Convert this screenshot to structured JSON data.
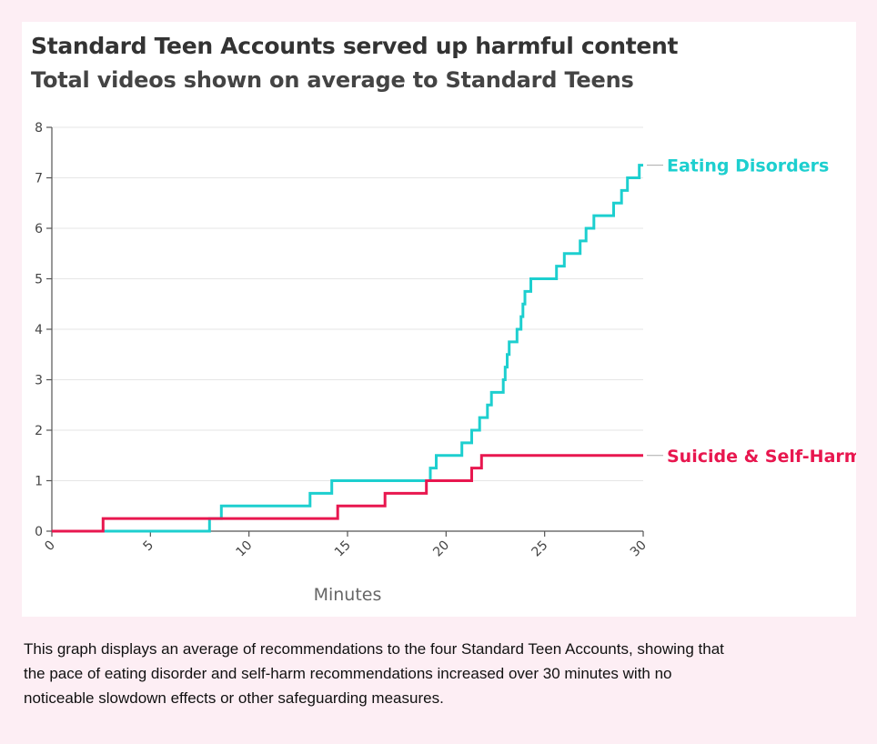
{
  "caption": "This graph displays an average of recommendations to the four Standard Teen Accounts, showing that the pace of eating disorder and self-harm recommendations increased over 30 minutes with no noticeable slowdown effects or other safeguarding measures.",
  "chart_data": {
    "type": "line",
    "step": true,
    "title": "Standard Teen Accounts served up harmful content",
    "subtitle": "Total videos shown on average to Standard Teens",
    "xlabel": "Minutes",
    "ylabel": "",
    "xlim": [
      0,
      30
    ],
    "ylim": [
      0,
      8
    ],
    "xticks": [
      0,
      5,
      10,
      15,
      20,
      25,
      30
    ],
    "yticks": [
      0,
      1,
      2,
      3,
      4,
      5,
      6,
      7,
      8
    ],
    "grid": "horizontal",
    "legend": "labels at right end of lines",
    "series": [
      {
        "name": "Eating Disorders",
        "color": "#1dcfcf",
        "points": [
          [
            0,
            0
          ],
          [
            8,
            0
          ],
          [
            8,
            0.25
          ],
          [
            8.6,
            0.25
          ],
          [
            8.6,
            0.5
          ],
          [
            13.1,
            0.5
          ],
          [
            13.1,
            0.75
          ],
          [
            14.2,
            0.75
          ],
          [
            14.2,
            1
          ],
          [
            19.2,
            1
          ],
          [
            19.2,
            1.25
          ],
          [
            19.5,
            1.25
          ],
          [
            19.5,
            1.5
          ],
          [
            20.8,
            1.5
          ],
          [
            20.8,
            1.75
          ],
          [
            21.3,
            1.75
          ],
          [
            21.3,
            2
          ],
          [
            21.7,
            2
          ],
          [
            21.7,
            2.25
          ],
          [
            22.1,
            2.25
          ],
          [
            22.1,
            2.5
          ],
          [
            22.3,
            2.5
          ],
          [
            22.3,
            2.75
          ],
          [
            22.9,
            2.75
          ],
          [
            22.9,
            3
          ],
          [
            23.0,
            3
          ],
          [
            23.0,
            3.25
          ],
          [
            23.1,
            3.25
          ],
          [
            23.1,
            3.5
          ],
          [
            23.2,
            3.5
          ],
          [
            23.2,
            3.75
          ],
          [
            23.6,
            3.75
          ],
          [
            23.6,
            4
          ],
          [
            23.8,
            4
          ],
          [
            23.8,
            4.25
          ],
          [
            23.9,
            4.25
          ],
          [
            23.9,
            4.5
          ],
          [
            24.0,
            4.5
          ],
          [
            24.0,
            4.75
          ],
          [
            24.3,
            4.75
          ],
          [
            24.3,
            5
          ],
          [
            25.6,
            5
          ],
          [
            25.6,
            5.25
          ],
          [
            26.0,
            5.25
          ],
          [
            26.0,
            5.5
          ],
          [
            26.8,
            5.5
          ],
          [
            26.8,
            5.75
          ],
          [
            27.1,
            5.75
          ],
          [
            27.1,
            6
          ],
          [
            27.5,
            6
          ],
          [
            27.5,
            6.25
          ],
          [
            28.5,
            6.25
          ],
          [
            28.5,
            6.5
          ],
          [
            28.9,
            6.5
          ],
          [
            28.9,
            6.75
          ],
          [
            29.2,
            6.75
          ],
          [
            29.2,
            7
          ],
          [
            29.8,
            7
          ],
          [
            29.8,
            7.25
          ],
          [
            30,
            7.25
          ]
        ]
      },
      {
        "name": "Suicide & Self-Harm",
        "color": "#e8174f",
        "points": [
          [
            0,
            0
          ],
          [
            2.6,
            0
          ],
          [
            2.6,
            0.25
          ],
          [
            14.5,
            0.25
          ],
          [
            14.5,
            0.5
          ],
          [
            16.9,
            0.5
          ],
          [
            16.9,
            0.75
          ],
          [
            19.0,
            0.75
          ],
          [
            19.0,
            1
          ],
          [
            21.3,
            1
          ],
          [
            21.3,
            1.25
          ],
          [
            21.8,
            1.25
          ],
          [
            21.8,
            1.5
          ],
          [
            30,
            1.5
          ]
        ]
      }
    ]
  }
}
